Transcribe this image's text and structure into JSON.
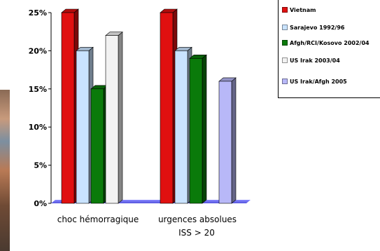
{
  "chart_data": {
    "type": "bar",
    "categories": [
      "choc hémorragique",
      "urgences absolues"
    ],
    "category_sublabels": [
      "",
      "ISS > 20"
    ],
    "yticks": [
      "0%",
      "5%",
      "10%",
      "15%",
      "20%",
      "25%"
    ],
    "ylim": [
      0,
      25
    ],
    "grid": false,
    "legend_position": "top-right",
    "series": [
      {
        "name": "Vietnam",
        "color": "#e01010",
        "values": [
          25,
          25
        ]
      },
      {
        "name": "Sarajevo 1992/96",
        "color": "#c9e3ff",
        "values": [
          20,
          20
        ]
      },
      {
        "name": "Afgh/RCI/Kosovo 2002/04",
        "color": "#0a7a0a",
        "values": [
          15,
          19
        ]
      },
      {
        "name": "US Irak 2003/04",
        "color": "#f2f2f2",
        "values": [
          22,
          0
        ]
      },
      {
        "name": "US Irak/Afgh 2005",
        "color": "#b8b8f8",
        "values": [
          0,
          16
        ]
      }
    ]
  }
}
